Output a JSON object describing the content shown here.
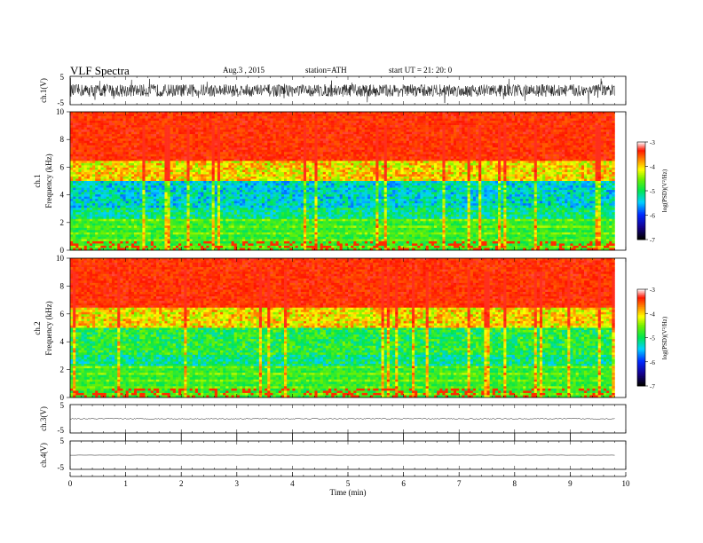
{
  "header": {
    "title": "VLF  Spectra",
    "date": "Aug.3  , 2015",
    "station": "station=ATH",
    "start": "start  UT  =   21: 20: 0"
  },
  "chart_data": [
    {
      "type": "line",
      "panel": "ch1-waveform",
      "ylabel": "ch.1(V)",
      "yticks": [
        "5",
        "-5"
      ],
      "ylim": [
        -5,
        5
      ],
      "xlim": [
        0,
        10
      ],
      "trace_color": "#000000",
      "description_visible": "dense noisy waveform around 0 V, extending from 0 to about 9.8 min"
    },
    {
      "type": "heatmap",
      "panel": "ch1-spectrogram",
      "ylabel": "Frequency  (kHz)",
      "channel_label": "ch.1",
      "yticks": [
        "0",
        "2",
        "4",
        "6",
        "8",
        "10"
      ],
      "ylim": [
        0,
        10
      ],
      "xlim": [
        0,
        9.8
      ],
      "colorbar": {
        "label": "log(PSD)(V²/Hz)",
        "ticks": [
          "-3",
          "-4",
          "-5",
          "-6",
          "-7"
        ],
        "range": [
          -7,
          -3
        ]
      }
    },
    {
      "type": "heatmap",
      "panel": "ch2-spectrogram",
      "ylabel": "Frequency  (kHz)",
      "channel_label": "ch.2",
      "yticks": [
        "0",
        "2",
        "4",
        "6",
        "8",
        "10"
      ],
      "ylim": [
        0,
        10
      ],
      "xlim": [
        0,
        9.8
      ],
      "colorbar": {
        "label": "log(PSD)(V²/Hz)",
        "ticks": [
          "-3",
          "-4",
          "-5",
          "-6",
          "-7"
        ],
        "range": [
          -7,
          -3
        ]
      }
    },
    {
      "type": "line",
      "panel": "ch3-waveform",
      "ylabel": "ch.3(V)",
      "yticks": [
        "5",
        "-5"
      ],
      "ylim": [
        -5,
        5
      ],
      "xlim": [
        0,
        10
      ],
      "trace_color": "#000000"
    },
    {
      "type": "line",
      "panel": "ch4-waveform",
      "ylabel": "ch.4(V)",
      "yticks": [
        "5",
        "-5"
      ],
      "ylim": [
        -5,
        5
      ],
      "xlim": [
        0,
        10
      ],
      "trace_color": "#000000"
    }
  ],
  "xaxis": {
    "label": "Time  (min)",
    "ticks": [
      "0",
      "1",
      "2",
      "3",
      "4",
      "5",
      "6",
      "7",
      "8",
      "9",
      "10"
    ]
  }
}
